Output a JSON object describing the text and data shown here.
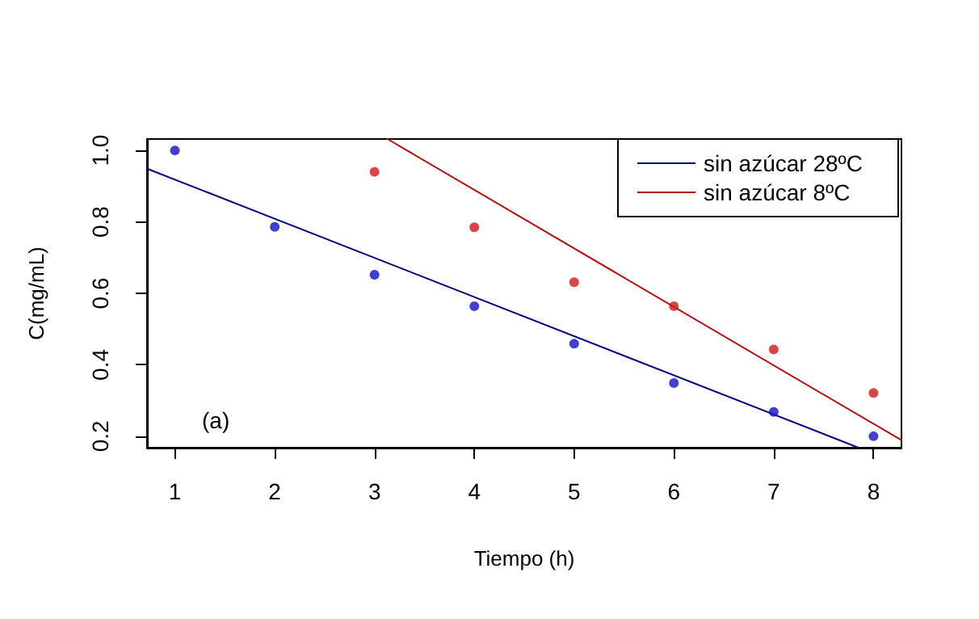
{
  "chart_data": {
    "type": "scatter",
    "xlabel": "Tiempo (h)",
    "ylabel": "C(mg/mL)",
    "annotations": [
      "(a)"
    ],
    "x": [
      1,
      2,
      3,
      4,
      5,
      6,
      7,
      8
    ],
    "series": [
      {
        "color": "#1010c0",
        "marker": "circle",
        "values": [
          1.0,
          0.786,
          0.652,
          0.564,
          0.459,
          0.349,
          0.268,
          0.2
        ]
      },
      {
        "color": "#d01818",
        "marker": "circle",
        "values": [
          null,
          null,
          0.94,
          0.785,
          0.631,
          0.564,
          0.443,
          0.321
        ]
      },
      {
        "type": "line",
        "name": "sin azúcar 28ºC",
        "color": "#00007f",
        "x": [
          0.72,
          7.85
        ],
        "values": [
          0.949,
          0.168
        ]
      },
      {
        "type": "line",
        "name": "sin azúcar 8ºC",
        "color": "#b01010",
        "x": [
          3.13,
          8.28
        ],
        "values": [
          1.032,
          0.189
        ]
      }
    ],
    "xlim": [
      0.72,
      8.28
    ],
    "xticks": [
      1,
      2,
      3,
      4,
      5,
      6,
      7,
      8
    ],
    "ylim": [
      0.168,
      1.032
    ],
    "yticks": [
      0.2,
      0.4,
      0.6,
      0.8,
      {
        "value": 1,
        "label": "1.0"
      }
    ],
    "grid": false,
    "legend": "top right",
    "marker": "none",
    "line_style": "solid"
  }
}
